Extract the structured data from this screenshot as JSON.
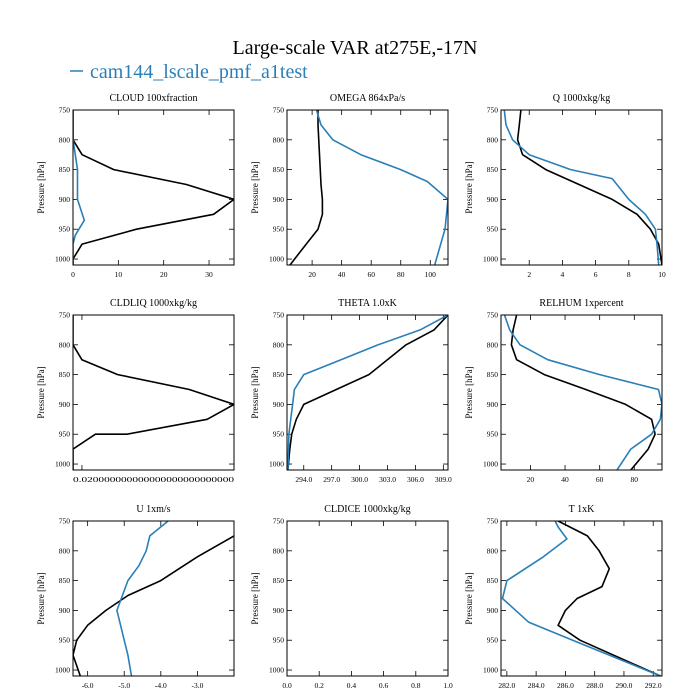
{
  "figure": {
    "title": "Large-scale VAR at275E,-17N",
    "legend": [
      {
        "label": "cam144_lscale_pmf_a1test",
        "color": "#2a7fb8"
      }
    ],
    "colors": {
      "black_series": "#000000",
      "blue_series": "#2a7fb8"
    }
  },
  "chart_data": [
    {
      "type": "line",
      "title": "CLOUD  100xfraction",
      "ylabel": "Pressure [hPa]",
      "xlim": [
        0,
        35.5
      ],
      "ylim": [
        1010,
        750
      ],
      "y_ticks": [
        750,
        800,
        850,
        900,
        950,
        1000
      ],
      "x_ticks": [
        {
          "v": 0,
          "l": "0"
        },
        {
          "v": 10,
          "l": "10"
        },
        {
          "v": 20,
          "l": "20"
        },
        {
          "v": 30,
          "l": "30"
        }
      ],
      "series": [
        {
          "color": "#000000",
          "x": [
            0,
            0,
            0,
            2,
            9,
            25,
            35.5,
            31,
            14,
            2,
            0,
            0
          ],
          "y": [
            750,
            775,
            800,
            825,
            850,
            875,
            900,
            925,
            950,
            975,
            1000,
            1010
          ]
        },
        {
          "name": "cam144_lscale_pmf_a1test",
          "color": "#2a7fb8",
          "x": [
            0,
            0,
            0.5,
            1,
            1,
            1,
            2.5,
            0.5,
            0,
            0,
            0
          ],
          "y": [
            750,
            800,
            825,
            850,
            875,
            900,
            935,
            960,
            975,
            1000,
            1010
          ]
        }
      ]
    },
    {
      "type": "line",
      "title": "OMEGA  864xPa/s",
      "ylabel": "Pressure [hPa]",
      "xlim": [
        3,
        112
      ],
      "ylim": [
        1010,
        750
      ],
      "y_ticks": [
        750,
        800,
        850,
        900,
        950,
        1000
      ],
      "x_ticks": [
        {
          "v": 20,
          "l": "20"
        },
        {
          "v": 40,
          "l": "40"
        },
        {
          "v": 60,
          "l": "60"
        },
        {
          "v": 80,
          "l": "80"
        },
        {
          "v": 100,
          "l": "100"
        }
      ],
      "series": [
        {
          "color": "#000000",
          "x": [
            24,
            24,
            25,
            26,
            27,
            27,
            24,
            16,
            5
          ],
          "y": [
            750,
            775,
            825,
            875,
            900,
            925,
            950,
            975,
            1010
          ]
        },
        {
          "name": "cam144_lscale_pmf_a1test",
          "color": "#2a7fb8",
          "x": [
            23,
            26,
            34,
            53,
            80,
            98,
            112,
            110,
            103
          ],
          "y": [
            750,
            775,
            800,
            825,
            850,
            870,
            900,
            950,
            1010
          ]
        }
      ]
    },
    {
      "type": "line",
      "title": "Q  1000xkg/kg",
      "ylabel": "Pressure [hPa]",
      "xlim": [
        0.3,
        10
      ],
      "ylim": [
        1010,
        750
      ],
      "y_ticks": [
        750,
        800,
        850,
        900,
        950,
        1000
      ],
      "x_ticks": [
        {
          "v": 2,
          "l": "2"
        },
        {
          "v": 4,
          "l": "4"
        },
        {
          "v": 6,
          "l": "6"
        },
        {
          "v": 8,
          "l": "8"
        },
        {
          "v": 10,
          "l": "10"
        }
      ],
      "series": [
        {
          "color": "#000000",
          "x": [
            1.5,
            1.4,
            1.3,
            1.6,
            3,
            5,
            7,
            8.5,
            9.3,
            9.8,
            10
          ],
          "y": [
            750,
            775,
            800,
            825,
            850,
            875,
            900,
            925,
            950,
            975,
            1010
          ]
        },
        {
          "name": "cam144_lscale_pmf_a1test",
          "color": "#2a7fb8",
          "x": [
            0.5,
            0.6,
            1,
            2,
            4.5,
            7,
            8,
            9,
            9.6,
            9.7,
            9.8
          ],
          "y": [
            750,
            775,
            800,
            825,
            850,
            865,
            900,
            925,
            950,
            975,
            1010
          ]
        }
      ]
    },
    {
      "type": "line",
      "title": "CLDLIQ  1000xkg/kg",
      "ylabel": "Pressure [hPa]",
      "xlim": [
        0,
        0.36
      ],
      "ylim": [
        1010,
        750
      ],
      "y_ticks": [
        750,
        800,
        850,
        900,
        950,
        1000
      ],
      "x_ticks": [
        {
          "v": 0.02,
          "l": "0.020000000000000000000000000"
        }
      ],
      "series": [
        {
          "color": "#000000",
          "x": [
            0,
            0,
            0,
            0.02,
            0.1,
            0.26,
            0.36,
            0.3,
            0.12,
            0.05,
            0,
            0
          ],
          "y": [
            750,
            775,
            800,
            825,
            850,
            875,
            900,
            925,
            950,
            950,
            975,
            1010
          ]
        }
      ]
    },
    {
      "type": "line",
      "title": "THETA  1.0xK",
      "ylabel": "Pressure [hPa]",
      "xlim": [
        292.2,
        309.5
      ],
      "ylim": [
        1010,
        750
      ],
      "y_ticks": [
        750,
        800,
        850,
        900,
        950,
        1000
      ],
      "x_ticks": [
        {
          "v": 294,
          "l": "294.0"
        },
        {
          "v": 297,
          "l": "297.0"
        },
        {
          "v": 300,
          "l": "300.0"
        },
        {
          "v": 303,
          "l": "303.0"
        },
        {
          "v": 306,
          "l": "306.0"
        },
        {
          "v": 309,
          "l": "309.0"
        }
      ],
      "series": [
        {
          "color": "#000000",
          "x": [
            309.5,
            308,
            305,
            301,
            297.5,
            294,
            293.2,
            292.7,
            292.5,
            292.3
          ],
          "y": [
            750,
            775,
            800,
            850,
            875,
            900,
            925,
            950,
            975,
            1010
          ]
        },
        {
          "name": "cam144_lscale_pmf_a1test",
          "color": "#2a7fb8",
          "x": [
            309.5,
            306.5,
            302,
            298,
            294,
            293,
            292.8,
            292.6,
            292.4,
            292.3
          ],
          "y": [
            750,
            775,
            800,
            825,
            850,
            875,
            900,
            925,
            950,
            1010
          ]
        }
      ]
    },
    {
      "type": "line",
      "title": "RELHUM  1xpercent",
      "ylabel": "Pressure [hPa]",
      "xlim": [
        3,
        96
      ],
      "ylim": [
        1010,
        750
      ],
      "y_ticks": [
        750,
        800,
        850,
        900,
        950,
        1000
      ],
      "x_ticks": [
        {
          "v": 20,
          "l": "20"
        },
        {
          "v": 40,
          "l": "40"
        },
        {
          "v": 60,
          "l": "60"
        },
        {
          "v": 80,
          "l": "80"
        }
      ],
      "series": [
        {
          "color": "#000000",
          "x": [
            12,
            10,
            9,
            12,
            28,
            52,
            75,
            90,
            92,
            88,
            78
          ],
          "y": [
            750,
            775,
            800,
            825,
            850,
            875,
            900,
            925,
            950,
            975,
            1010
          ]
        },
        {
          "name": "cam144_lscale_pmf_a1test",
          "color": "#2a7fb8",
          "x": [
            5,
            8,
            14,
            30,
            60,
            94,
            96,
            95,
            90,
            78,
            70
          ],
          "y": [
            750,
            775,
            800,
            825,
            850,
            875,
            900,
            925,
            950,
            975,
            1010
          ]
        }
      ]
    },
    {
      "type": "line",
      "title": "U  1xm/s",
      "ylabel": "Pressure [hPa]",
      "xlim": [
        -6.4,
        -2.0
      ],
      "ylim": [
        1010,
        750
      ],
      "y_ticks": [
        750,
        800,
        850,
        900,
        950,
        1000
      ],
      "x_ticks": [
        {
          "v": -6,
          "l": "-6.0"
        },
        {
          "v": -5,
          "l": "-5.0"
        },
        {
          "v": -4,
          "l": "-4.0"
        },
        {
          "v": -3,
          "l": "-3.0"
        }
      ],
      "series": [
        {
          "color": "#000000",
          "x": [
            -2.0,
            -3.0,
            -4.0,
            -4.9,
            -5.5,
            -6.0,
            -6.3,
            -6.4,
            -6.2
          ],
          "y": [
            775,
            810,
            850,
            875,
            900,
            925,
            950,
            975,
            1010
          ]
        },
        {
          "name": "cam144_lscale_pmf_a1test",
          "color": "#2a7fb8",
          "x": [
            -3.8,
            -4.3,
            -4.4,
            -4.6,
            -4.9,
            -5.2,
            -5.1,
            -5.0,
            -4.9,
            -4.8
          ],
          "y": [
            750,
            775,
            800,
            825,
            850,
            900,
            925,
            950,
            975,
            1010
          ]
        }
      ]
    },
    {
      "type": "line",
      "title": "CLDICE  1000xkg/kg",
      "ylabel": "Pressure [hPa]",
      "xlim": [
        0,
        1
      ],
      "ylim": [
        1010,
        750
      ],
      "y_ticks": [
        750,
        800,
        850,
        900,
        950,
        1000
      ],
      "x_ticks": [
        {
          "v": 0,
          "l": "0.0"
        },
        {
          "v": 0.2,
          "l": "0.2"
        },
        {
          "v": 0.4,
          "l": "0.4"
        },
        {
          "v": 0.6,
          "l": "0.6"
        },
        {
          "v": 0.8,
          "l": "0.8"
        },
        {
          "v": 1.0,
          "l": "1.0"
        }
      ],
      "series": []
    },
    {
      "type": "line",
      "title": "T  1xK",
      "ylabel": "Pressure [hPa]",
      "xlim": [
        281.6,
        292.6
      ],
      "ylim": [
        1010,
        750
      ],
      "y_ticks": [
        750,
        800,
        850,
        900,
        950,
        1000
      ],
      "x_ticks": [
        {
          "v": 282,
          "l": "282.0"
        },
        {
          "v": 284,
          "l": "284.0"
        },
        {
          "v": 286,
          "l": "286.0"
        },
        {
          "v": 288,
          "l": "288.0"
        },
        {
          "v": 290,
          "l": "290.0"
        },
        {
          "v": 292,
          "l": "292.0"
        }
      ],
      "series": [
        {
          "color": "#000000",
          "x": [
            285.5,
            287.5,
            288.3,
            289,
            288.5,
            286.8,
            286,
            285.5,
            287,
            292.5
          ],
          "y": [
            750,
            775,
            800,
            830,
            860,
            880,
            900,
            925,
            950,
            1010
          ]
        },
        {
          "name": "cam144_lscale_pmf_a1test",
          "color": "#2a7fb8",
          "x": [
            285.3,
            285.5,
            286.1,
            284.5,
            282.0,
            281.7,
            283.5,
            286.5,
            292.5
          ],
          "y": [
            750,
            760,
            780,
            810,
            850,
            880,
            920,
            950,
            1010
          ]
        }
      ]
    }
  ]
}
